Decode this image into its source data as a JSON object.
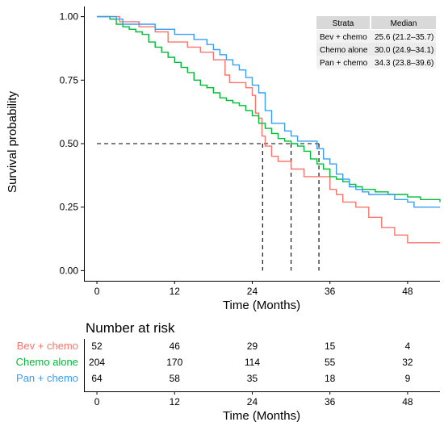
{
  "chart_data": [
    {
      "type": "line",
      "subtype": "kaplan-meier",
      "ylabel": "Survival probability",
      "xlabel": "Time (Months)",
      "xlim": [
        -2,
        53
      ],
      "ylim": [
        -0.04,
        1.04
      ],
      "xticks": [
        "0",
        "12",
        "24",
        "36",
        "48"
      ],
      "yticks": [
        "0.00",
        "0.25",
        "0.50",
        "0.75",
        "1.00"
      ],
      "grid": false,
      "strata_table": {
        "headers": [
          "Strata",
          "Median"
        ],
        "rows": [
          [
            "Bev + chemo",
            "25.6 (21.2–35.7)"
          ],
          [
            "Chemo alone",
            "30.0 (24.9–34.1)"
          ],
          [
            "Pan + chemo",
            "34.3 (23.8–39.6)"
          ]
        ]
      },
      "median_lines": [
        25.6,
        30.0,
        34.3
      ],
      "median_level": 0.5,
      "series": [
        {
          "name": "Bev + chemo",
          "color": "#f8766d",
          "x": [
            0,
            2.5,
            3.5,
            5.5,
            6.5,
            8,
            9,
            10,
            11,
            12.5,
            14,
            15,
            16,
            17,
            18,
            19,
            19.8,
            20.5,
            21.5,
            22,
            23,
            24,
            24.5,
            25,
            25.5,
            26,
            27,
            28,
            29,
            30,
            31,
            32,
            33,
            34,
            35,
            36,
            37,
            38,
            40,
            42,
            44,
            46,
            48,
            53
          ],
          "y": [
            1.0,
            1.0,
            0.98,
            0.98,
            0.96,
            0.96,
            0.94,
            0.94,
            0.9,
            0.9,
            0.88,
            0.88,
            0.86,
            0.86,
            0.83,
            0.83,
            0.77,
            0.74,
            0.74,
            0.74,
            0.72,
            0.69,
            0.62,
            0.6,
            0.53,
            0.49,
            0.45,
            0.43,
            0.43,
            0.4,
            0.4,
            0.37,
            0.37,
            0.37,
            0.37,
            0.32,
            0.3,
            0.27,
            0.25,
            0.21,
            0.17,
            0.14,
            0.11,
            0.11
          ]
        },
        {
          "name": "Chemo alone",
          "color": "#00ba38",
          "x": [
            0,
            2,
            3,
            4,
            5,
            6,
            7,
            8,
            9,
            10,
            11,
            12,
            13,
            14,
            15,
            16,
            17,
            18,
            19,
            20,
            21,
            22,
            23,
            24,
            25,
            26,
            27,
            28,
            29,
            30,
            31,
            32,
            33,
            34,
            35,
            36,
            37,
            38,
            39,
            40,
            41,
            42,
            43,
            44,
            45,
            46,
            47,
            48,
            49,
            50,
            51,
            52,
            53
          ],
          "y": [
            1.0,
            0.99,
            0.97,
            0.96,
            0.95,
            0.94,
            0.93,
            0.9,
            0.88,
            0.86,
            0.84,
            0.82,
            0.8,
            0.78,
            0.75,
            0.73,
            0.72,
            0.7,
            0.68,
            0.67,
            0.66,
            0.65,
            0.63,
            0.61,
            0.58,
            0.56,
            0.54,
            0.52,
            0.51,
            0.5,
            0.49,
            0.47,
            0.44,
            0.42,
            0.4,
            0.37,
            0.36,
            0.35,
            0.34,
            0.33,
            0.32,
            0.32,
            0.31,
            0.31,
            0.3,
            0.3,
            0.3,
            0.29,
            0.29,
            0.28,
            0.28,
            0.28,
            0.27
          ]
        },
        {
          "name": "Pan + chemo",
          "color": "#3a9df2",
          "x": [
            0,
            2,
            3,
            4,
            5,
            6,
            8,
            9,
            10,
            12,
            14,
            15,
            16,
            17,
            18,
            19,
            20,
            21,
            22,
            23,
            24,
            25,
            26,
            27,
            28,
            29,
            30,
            31,
            32,
            33,
            34,
            35,
            36,
            37,
            38,
            39,
            40,
            41,
            42,
            43,
            44,
            45,
            46,
            47,
            48,
            49,
            50,
            51,
            53
          ],
          "y": [
            1.0,
            1.0,
            0.99,
            0.97,
            0.97,
            0.97,
            0.97,
            0.95,
            0.95,
            0.93,
            0.93,
            0.91,
            0.91,
            0.89,
            0.87,
            0.85,
            0.83,
            0.81,
            0.79,
            0.76,
            0.73,
            0.7,
            0.63,
            0.58,
            0.58,
            0.55,
            0.53,
            0.51,
            0.51,
            0.51,
            0.48,
            0.44,
            0.42,
            0.38,
            0.36,
            0.33,
            0.32,
            0.31,
            0.3,
            0.3,
            0.3,
            0.3,
            0.28,
            0.28,
            0.27,
            0.25,
            0.25,
            0.25,
            0.25
          ]
        }
      ]
    },
    {
      "type": "table",
      "title": "Number at risk",
      "xlabel": "Time (Months)",
      "xticks": [
        "0",
        "12",
        "24",
        "36",
        "48"
      ],
      "rows": [
        {
          "name": "Bev + chemo",
          "color": "#f8766d",
          "values": [
            "52",
            "46",
            "29",
            "15",
            "4"
          ]
        },
        {
          "name": "Chemo alone",
          "color": "#00ba38",
          "values": [
            "204",
            "170",
            "114",
            "55",
            "32"
          ]
        },
        {
          "name": "Pan + chemo",
          "color": "#3a9df2",
          "values": [
            "64",
            "58",
            "35",
            "18",
            "9"
          ]
        }
      ]
    }
  ]
}
